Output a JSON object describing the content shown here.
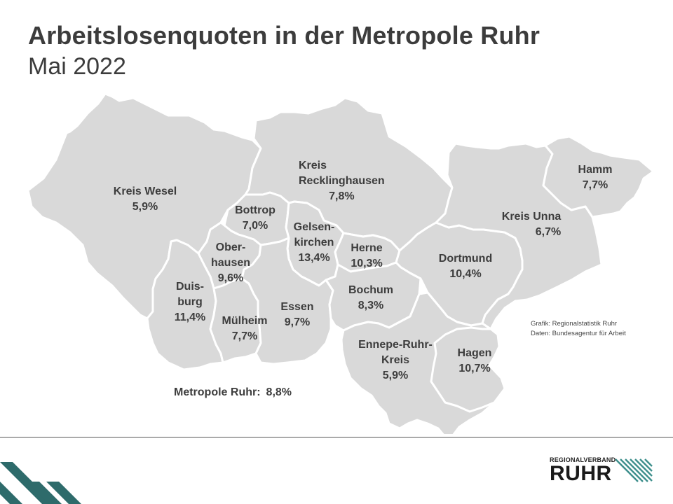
{
  "header": {
    "title": "Arbeitslosenquoten in der Metropole Ruhr",
    "subtitle": "Mai 2022"
  },
  "regions": [
    {
      "id": "wesel",
      "lines": [
        "Kreis Wesel",
        "5,9%"
      ],
      "rate": 5.9
    },
    {
      "id": "recklinghausen",
      "lines": [
        "Kreis",
        "Recklinghausen",
        "7,8%"
      ],
      "rate": 7.8
    },
    {
      "id": "bottrop",
      "lines": [
        "Bottrop",
        "7,0%"
      ],
      "rate": 7.0
    },
    {
      "id": "gelsenkirchen",
      "lines": [
        "Gelsen-",
        "kirchen",
        "13,4%"
      ],
      "rate": 13.4
    },
    {
      "id": "herne",
      "lines": [
        "Herne",
        "10,3%"
      ],
      "rate": 10.3
    },
    {
      "id": "oberhausen",
      "lines": [
        "Ober-",
        "hausen",
        "9,6%"
      ],
      "rate": 9.6
    },
    {
      "id": "duisburg",
      "lines": [
        "Duis-",
        "burg",
        "11,4%"
      ],
      "rate": 11.4
    },
    {
      "id": "muelheim",
      "lines": [
        "Mülheim",
        "7,7%"
      ],
      "rate": 7.7
    },
    {
      "id": "essen",
      "lines": [
        "Essen",
        "9,7%"
      ],
      "rate": 9.7
    },
    {
      "id": "bochum",
      "lines": [
        "Bochum",
        "8,3%"
      ],
      "rate": 8.3
    },
    {
      "id": "dortmund",
      "lines": [
        "Dortmund",
        "10,4%"
      ],
      "rate": 10.4
    },
    {
      "id": "unna",
      "lines": [
        "Kreis Unna",
        "6,7%"
      ],
      "rate": 6.7
    },
    {
      "id": "hamm",
      "lines": [
        "Hamm",
        "7,7%"
      ],
      "rate": 7.7
    },
    {
      "id": "ennepe",
      "lines": [
        "Ennepe-Ruhr-",
        "Kreis",
        "5,9%"
      ],
      "rate": 5.9
    },
    {
      "id": "hagen",
      "lines": [
        "Hagen",
        "10,7%"
      ],
      "rate": 10.7
    }
  ],
  "total": {
    "label": "Metropole Ruhr:",
    "value": "8,8%"
  },
  "credits": {
    "line1": "Grafik: Regionalstatistik Ruhr",
    "line2": "Daten: Bundesagentur für Arbeit"
  },
  "logo": {
    "small": "REGIONALVERBAND",
    "big": "RUHR"
  },
  "colors": {
    "region_fill": "#d9d9d9",
    "region_border": "#ffffff",
    "text": "#3d3d3d",
    "stripe": "#2e6b6b"
  }
}
